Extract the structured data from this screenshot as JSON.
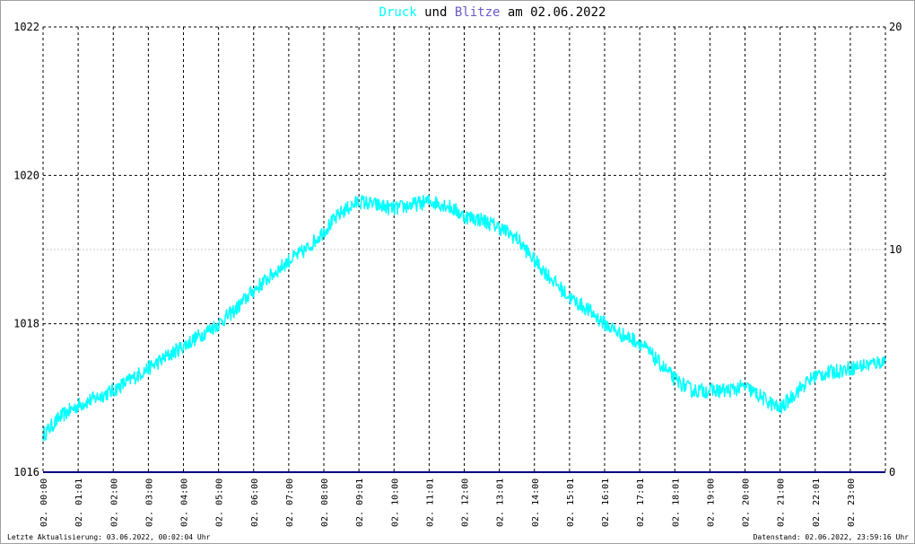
{
  "title": {
    "part1": "Druck",
    "part2": " und ",
    "part3": "Blitze",
    "part4": " am 02.06.2022"
  },
  "colors": {
    "druck": "#00ffff",
    "blitze": "#000080",
    "title_text": "#000000",
    "grid": "#000000",
    "minor_grid": "#c8c8c8",
    "frame": "#a0a0a0"
  },
  "footer": {
    "left": "Letzte Aktualisierung: 03.06.2022, 00:02:04 Uhr",
    "right": "Datenstand: 02.06.2022, 23:59:16 Uhr"
  },
  "chart_data": {
    "type": "line",
    "title": "Druck und Blitze am 02.06.2022",
    "x_range_hours": [
      0,
      24
    ],
    "x_tick_labels": [
      "02. 00:00",
      "02. 01:01",
      "02. 02:00",
      "02. 03:00",
      "02. 04:00",
      "02. 05:00",
      "02. 06:00",
      "02. 07:00",
      "02. 08:00",
      "02. 09:01",
      "02. 10:00",
      "02. 11:01",
      "02. 12:00",
      "02. 13:01",
      "02. 14:00",
      "02. 15:01",
      "02. 16:01",
      "02. 17:01",
      "02. 18:01",
      "02. 19:00",
      "02. 20:00",
      "02. 21:00",
      "02. 22:01",
      "02. 23:00"
    ],
    "x_tick_hours": [
      0.0,
      1.0,
      2.0,
      3.0,
      4.0,
      5.0,
      6.0,
      7.0,
      8.0,
      9.0,
      10.0,
      11.0,
      12.0,
      13.0,
      14.0,
      15.0,
      16.0,
      17.0,
      18.0,
      19.0,
      20.0,
      21.0,
      22.0,
      23.0
    ],
    "y_left": {
      "range": [
        1016,
        1022
      ],
      "tick_labels": [
        "1016",
        "1018",
        "1020",
        "1022"
      ]
    },
    "y_right": {
      "range": [
        0,
        20
      ],
      "tick_labels": [
        "0",
        "10",
        "20"
      ]
    },
    "grid": true,
    "series": [
      {
        "name": "Druck",
        "axis": "left",
        "x_hours": [
          0.0,
          0.5,
          1.0,
          1.5,
          2.0,
          2.5,
          3.0,
          3.5,
          4.0,
          4.5,
          5.0,
          5.5,
          6.0,
          6.5,
          7.0,
          7.5,
          8.0,
          8.5,
          9.0,
          9.5,
          10.0,
          10.5,
          11.0,
          11.5,
          12.0,
          12.5,
          13.0,
          13.5,
          14.0,
          14.5,
          15.0,
          15.5,
          16.0,
          16.5,
          17.0,
          17.5,
          18.0,
          18.5,
          19.0,
          19.5,
          20.0,
          20.5,
          21.0,
          21.5,
          22.0,
          22.5,
          23.0,
          23.5,
          24.0
        ],
        "values": [
          1016.5,
          1016.75,
          1016.9,
          1017.0,
          1017.1,
          1017.25,
          1017.4,
          1017.55,
          1017.7,
          1017.85,
          1018.0,
          1018.2,
          1018.45,
          1018.65,
          1018.85,
          1019.0,
          1019.25,
          1019.5,
          1019.65,
          1019.6,
          1019.55,
          1019.6,
          1019.65,
          1019.6,
          1019.45,
          1019.4,
          1019.3,
          1019.15,
          1018.85,
          1018.6,
          1018.35,
          1018.2,
          1018.0,
          1017.85,
          1017.75,
          1017.5,
          1017.25,
          1017.1,
          1017.1,
          1017.1,
          1017.15,
          1017.0,
          1016.85,
          1017.1,
          1017.3,
          1017.35,
          1017.4,
          1017.45,
          1017.5
        ]
      },
      {
        "name": "Blitze",
        "axis": "right",
        "x_hours": [
          0,
          24
        ],
        "values": [
          0,
          0
        ]
      }
    ]
  }
}
